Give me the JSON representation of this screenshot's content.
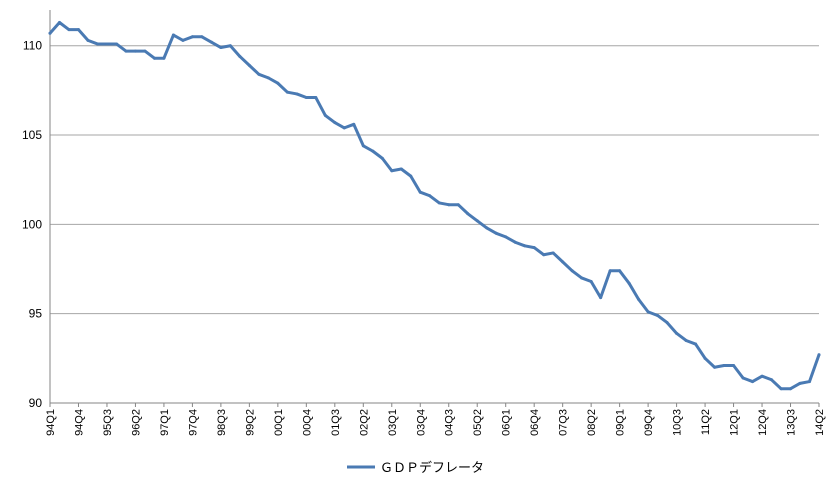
{
  "chart_data": {
    "type": "line",
    "title": "",
    "xlabel": "",
    "ylabel": "",
    "ylim": [
      90,
      112
    ],
    "yticks": [
      90,
      95,
      100,
      105,
      110
    ],
    "grid": "horizontal",
    "legend_position": "bottom",
    "line_color": "#4a7ab3",
    "grid_color": "#a6a6a6",
    "x_tick_labels": [
      "94Q1",
      "94Q4",
      "95Q3",
      "96Q2",
      "97Q1",
      "97Q4",
      "98Q3",
      "99Q2",
      "00Q1",
      "00Q4",
      "01Q3",
      "02Q2",
      "03Q1",
      "03Q4",
      "04Q3",
      "05Q2",
      "06Q1",
      "06Q4",
      "07Q3",
      "08Q2",
      "09Q1",
      "09Q4",
      "10Q3",
      "11Q2",
      "12Q1",
      "12Q4",
      "13Q3",
      "14Q2"
    ],
    "x": [
      "94Q1",
      "94Q2",
      "94Q3",
      "94Q4",
      "95Q1",
      "95Q2",
      "95Q3",
      "95Q4",
      "96Q1",
      "96Q2",
      "96Q3",
      "96Q4",
      "97Q1",
      "97Q2",
      "97Q3",
      "97Q4",
      "98Q1",
      "98Q2",
      "98Q3",
      "98Q4",
      "99Q1",
      "99Q2",
      "99Q3",
      "99Q4",
      "00Q1",
      "00Q2",
      "00Q3",
      "00Q4",
      "01Q1",
      "01Q2",
      "01Q3",
      "01Q4",
      "02Q1",
      "02Q2",
      "02Q3",
      "02Q4",
      "03Q1",
      "03Q2",
      "03Q3",
      "03Q4",
      "04Q1",
      "04Q2",
      "04Q3",
      "04Q4",
      "05Q1",
      "05Q2",
      "05Q3",
      "05Q4",
      "06Q1",
      "06Q2",
      "06Q3",
      "06Q4",
      "07Q1",
      "07Q2",
      "07Q3",
      "07Q4",
      "08Q1",
      "08Q2",
      "08Q3",
      "08Q4",
      "09Q1",
      "09Q2",
      "09Q3",
      "09Q4",
      "10Q1",
      "10Q2",
      "10Q3",
      "10Q4",
      "11Q1",
      "11Q2",
      "11Q3",
      "11Q4",
      "12Q1",
      "12Q2",
      "12Q3",
      "12Q4",
      "13Q1",
      "13Q2",
      "13Q3",
      "13Q4",
      "14Q1",
      "14Q2"
    ],
    "series": [
      {
        "name": "ＧＤＰデフレータ",
        "values": [
          110.7,
          111.3,
          110.9,
          110.9,
          110.3,
          110.1,
          110.1,
          110.1,
          109.7,
          109.7,
          109.7,
          109.3,
          109.3,
          110.6,
          110.3,
          110.5,
          110.5,
          110.2,
          109.9,
          110.0,
          109.4,
          108.9,
          108.4,
          108.2,
          107.9,
          107.4,
          107.3,
          107.1,
          107.1,
          106.1,
          105.7,
          105.4,
          105.6,
          104.4,
          104.1,
          103.7,
          103.0,
          103.1,
          102.7,
          101.8,
          101.6,
          101.2,
          101.1,
          101.1,
          100.6,
          100.2,
          99.8,
          99.5,
          99.3,
          99.0,
          98.8,
          98.7,
          98.3,
          98.4,
          97.9,
          97.4,
          97.0,
          96.8,
          95.9,
          97.4,
          97.4,
          96.7,
          95.8,
          95.1,
          94.9,
          94.5,
          93.9,
          93.5,
          93.3,
          92.5,
          92.0,
          92.1,
          92.1,
          91.4,
          91.2,
          91.5,
          91.3,
          90.8,
          90.8,
          91.1,
          91.2,
          92.7
        ]
      }
    ]
  }
}
